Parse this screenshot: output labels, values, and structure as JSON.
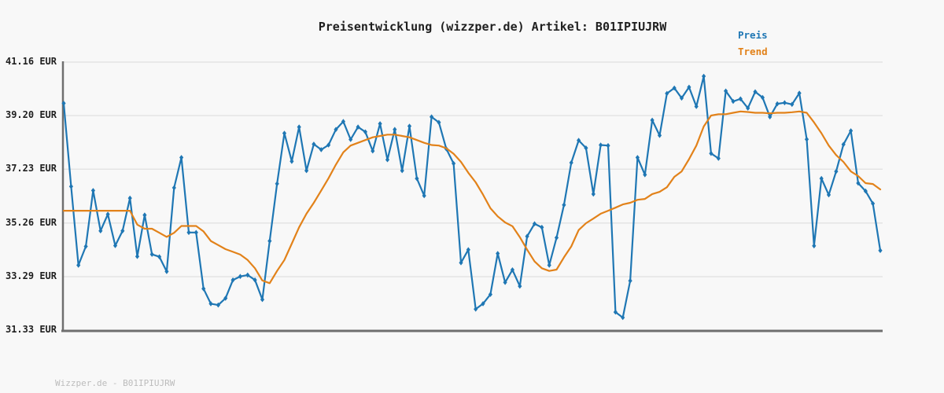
{
  "footer": "Wizzper.de - B01IPIUJRW",
  "chart_data": {
    "type": "line",
    "title": "Preisentwicklung (wizzper.de) Artikel: B01IPIUJRW",
    "unit": "EUR",
    "grid": true,
    "legend_position": "top-right",
    "x_tick_labels_visible": false,
    "ylim": [
      31.33,
      41.16
    ],
    "yticks": [
      {
        "value": 41.16,
        "label": "41.16 EUR"
      },
      {
        "value": 39.2,
        "label": "39.20 EUR"
      },
      {
        "value": 37.23,
        "label": "37.23 EUR"
      },
      {
        "value": 35.26,
        "label": "35.26 EUR"
      },
      {
        "value": 33.29,
        "label": "33.29 EUR"
      },
      {
        "value": 31.33,
        "label": "31.33 EUR"
      }
    ],
    "colors": {
      "grid": "#e4e4e4",
      "axis": "#6f6f6f",
      "background": "#f8f8f8",
      "title": "#1f1f1f"
    },
    "series": [
      {
        "name": "Preis",
        "color": "#1f77b4",
        "markers": true,
        "values": [
          39.65,
          36.6,
          33.71,
          34.4,
          36.45,
          34.97,
          35.58,
          34.43,
          34.97,
          36.17,
          34.03,
          35.55,
          34.11,
          34.02,
          33.48,
          36.55,
          37.66,
          34.91,
          34.91,
          32.85,
          32.3,
          32.25,
          32.5,
          33.17,
          33.3,
          33.35,
          33.17,
          32.45,
          34.6,
          36.7,
          38.55,
          37.52,
          38.78,
          37.18,
          38.15,
          37.95,
          38.12,
          38.69,
          38.98,
          38.32,
          38.78,
          38.6,
          37.9,
          38.9,
          37.58,
          38.69,
          37.18,
          38.81,
          36.89,
          36.26,
          39.15,
          38.95,
          37.98,
          37.44,
          33.8,
          34.28,
          32.1,
          32.3,
          32.64,
          34.14,
          33.08,
          33.54,
          32.94,
          34.77,
          35.23,
          35.1,
          33.71,
          34.72,
          35.92,
          37.47,
          38.29,
          38.01,
          36.32,
          38.12,
          38.1,
          31.99,
          31.79,
          33.14,
          37.66,
          37.03,
          39.03,
          38.47,
          40.01,
          40.21,
          39.84,
          40.24,
          39.53,
          40.64,
          37.81,
          37.63,
          40.1,
          39.72,
          39.81,
          39.47,
          40.07,
          39.86,
          39.15,
          39.63,
          39.67,
          39.61,
          40.02,
          38.33,
          34.42,
          36.89,
          36.29,
          37.15,
          38.14,
          38.64,
          36.72,
          36.43,
          35.97,
          34.25
        ]
      },
      {
        "name": "Trend",
        "color": "#e2821a",
        "markers": false,
        "values": [
          35.71,
          35.71,
          35.71,
          35.71,
          35.71,
          35.71,
          35.71,
          35.71,
          35.71,
          35.71,
          35.2,
          35.05,
          35.05,
          34.9,
          34.75,
          34.9,
          35.15,
          35.15,
          35.15,
          34.95,
          34.6,
          34.45,
          34.3,
          34.2,
          34.1,
          33.9,
          33.6,
          33.15,
          33.05,
          33.5,
          33.9,
          34.5,
          35.1,
          35.6,
          36.0,
          36.45,
          36.9,
          37.4,
          37.85,
          38.1,
          38.2,
          38.3,
          38.4,
          38.45,
          38.5,
          38.5,
          38.45,
          38.4,
          38.3,
          38.2,
          38.12,
          38.1,
          38.0,
          37.8,
          37.5,
          37.1,
          36.75,
          36.3,
          35.8,
          35.5,
          35.28,
          35.14,
          34.74,
          34.28,
          33.85,
          33.6,
          33.5,
          33.55,
          34.0,
          34.4,
          35.0,
          35.25,
          35.42,
          35.6,
          35.71,
          35.82,
          35.94,
          36.0,
          36.11,
          36.14,
          36.32,
          36.4,
          36.57,
          36.95,
          37.15,
          37.6,
          38.1,
          38.8,
          39.2,
          39.25,
          39.25,
          39.3,
          39.35,
          39.33,
          39.3,
          39.3,
          39.28,
          39.3,
          39.3,
          39.32,
          39.35,
          39.3,
          38.95,
          38.55,
          38.1,
          37.75,
          37.5,
          37.15,
          36.98,
          36.72,
          36.69,
          36.49
        ]
      }
    ]
  }
}
